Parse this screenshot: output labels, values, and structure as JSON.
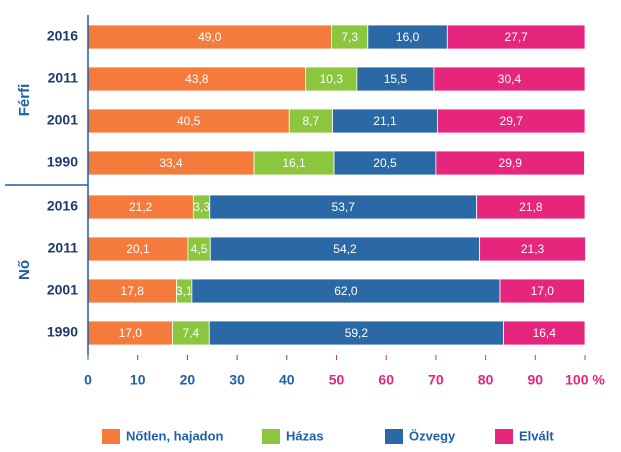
{
  "chart_data": {
    "type": "stacked-bar-horizontal",
    "groups": [
      {
        "name": "Férfi",
        "categories": [
          "2016",
          "2011",
          "2001",
          "1990"
        ]
      },
      {
        "name": "Nő",
        "categories": [
          "2016",
          "2011",
          "2001",
          "1990"
        ]
      }
    ],
    "series": [
      {
        "name": "Nőtlen, hajadon",
        "color": "#f47b3b",
        "values": [
          49.0,
          43.8,
          40.5,
          33.4,
          21.2,
          20.1,
          17.8,
          17.0
        ],
        "value_labels": [
          "49,0",
          "43,8",
          "40,5",
          "33,4",
          "21,2",
          "20,1",
          "17,8",
          "17,0"
        ]
      },
      {
        "name": "Házas",
        "color": "#8cc63f",
        "values": [
          7.3,
          10.3,
          8.7,
          16.1,
          3.3,
          4.5,
          3.1,
          7.4
        ],
        "value_labels": [
          "7,3",
          "10,3",
          "8,7",
          "16,1",
          "3,3",
          "4,5",
          "3,1",
          "7,4"
        ]
      },
      {
        "name": "Özvegy",
        "color": "#2a69a6",
        "values": [
          16.0,
          15.5,
          21.1,
          20.5,
          53.7,
          54.2,
          62.0,
          59.2
        ],
        "value_labels": [
          "16,0",
          "15,5",
          "21,1",
          "20,5",
          "53,7",
          "54,2",
          "62,0",
          "59,2"
        ]
      },
      {
        "name": "Elvált",
        "color": "#e6257d",
        "values": [
          27.7,
          30.4,
          29.7,
          29.9,
          21.8,
          21.3,
          17.0,
          16.4
        ],
        "value_labels": [
          "27,7",
          "30,4",
          "29,7",
          "29,9",
          "21,8",
          "21,3",
          "17,0",
          "16,4"
        ]
      }
    ],
    "xlim": [
      0,
      100
    ],
    "xticks": [
      0,
      10,
      20,
      30,
      40,
      50,
      60,
      70,
      80,
      90,
      {
        "value": 100,
        "label": "100 %"
      }
    ],
    "xtick_colors": [
      "#1f5fa8",
      "#1f5fa8",
      "#1f5fa8",
      "#1f5fa8",
      "#1f5fa8",
      "#e6257d",
      "#e6257d",
      "#e6257d",
      "#e6257d",
      "#e6257d",
      "#e6257d"
    ]
  }
}
